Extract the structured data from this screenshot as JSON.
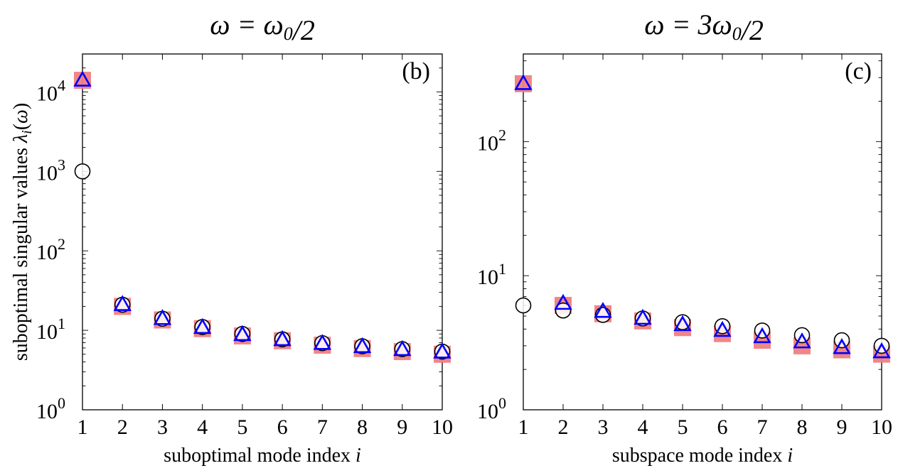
{
  "chart_data": [
    {
      "type": "scatter",
      "panel_label": "(b)",
      "title": "ω = ω₀/2",
      "xlabel": "suboptimal mode index i",
      "ylabel": "suboptimal singular values λᵢ(ω)",
      "x_ticks": [
        "1",
        "2",
        "3",
        "4",
        "5",
        "6",
        "7",
        "8",
        "9",
        "10"
      ],
      "y_scale": "log",
      "ylim": [
        1,
        30000
      ],
      "xlim": [
        1,
        10
      ],
      "y_ticks": [
        {
          "value": 1,
          "base": "10",
          "exp": "0"
        },
        {
          "value": 10,
          "base": "10",
          "exp": "1"
        },
        {
          "value": 100,
          "base": "10",
          "exp": "2"
        },
        {
          "value": 1000,
          "base": "10",
          "exp": "3"
        },
        {
          "value": 10000,
          "base": "10",
          "exp": "4"
        }
      ],
      "grid": false,
      "series": [
        {
          "marker": "square",
          "color": "#f08080",
          "x": [
            1,
            2,
            3,
            4,
            5,
            6,
            7,
            8,
            9,
            10
          ],
          "values": [
            14000,
            20,
            13.5,
            10.5,
            8.5,
            7.4,
            6.5,
            5.9,
            5.4,
            5.0
          ]
        },
        {
          "marker": "circle",
          "color": "#000000",
          "x": [
            1,
            2,
            3,
            4,
            5,
            6,
            7,
            8,
            9,
            10
          ],
          "values": [
            1000,
            21,
            14,
            11,
            9,
            7.7,
            6.9,
            6.3,
            5.8,
            5.4
          ]
        },
        {
          "marker": "triangle",
          "color": "#0000ff",
          "x": [
            1,
            2,
            3,
            4,
            5,
            6,
            7,
            8,
            9,
            10
          ],
          "values": [
            14000,
            21,
            14,
            10.8,
            8.8,
            7.6,
            6.8,
            6.2,
            5.7,
            5.3
          ]
        }
      ]
    },
    {
      "type": "scatter",
      "panel_label": "(c)",
      "title": "ω = 3ω₀/2",
      "xlabel": "subspace mode index i",
      "ylabel": "",
      "x_ticks": [
        "1",
        "2",
        "3",
        "4",
        "5",
        "6",
        "7",
        "8",
        "9",
        "10"
      ],
      "y_scale": "log",
      "ylim": [
        1,
        450
      ],
      "xlim": [
        1,
        10
      ],
      "y_ticks": [
        {
          "value": 1,
          "base": "10",
          "exp": "0"
        },
        {
          "value": 10,
          "base": "10",
          "exp": "1"
        },
        {
          "value": 100,
          "base": "10",
          "exp": "2"
        }
      ],
      "grid": false,
      "series": [
        {
          "marker": "square",
          "color": "#f08080",
          "x": [
            1,
            2,
            3,
            4,
            5,
            6,
            7,
            8,
            9,
            10
          ],
          "values": [
            270,
            6.0,
            5.2,
            4.6,
            4.1,
            3.7,
            3.3,
            3.0,
            2.8,
            2.6
          ]
        },
        {
          "marker": "circle",
          "color": "#000000",
          "x": [
            1,
            2,
            3,
            4,
            5,
            6,
            7,
            8,
            9,
            10
          ],
          "values": [
            6.0,
            5.5,
            5.1,
            4.8,
            4.5,
            4.2,
            3.9,
            3.6,
            3.3,
            3.0
          ]
        },
        {
          "marker": "triangle",
          "color": "#0000ff",
          "x": [
            1,
            2,
            3,
            4,
            5,
            6,
            7,
            8,
            9,
            10
          ],
          "values": [
            270,
            6.2,
            5.4,
            4.8,
            4.3,
            3.9,
            3.5,
            3.2,
            2.9,
            2.7
          ]
        }
      ]
    }
  ]
}
